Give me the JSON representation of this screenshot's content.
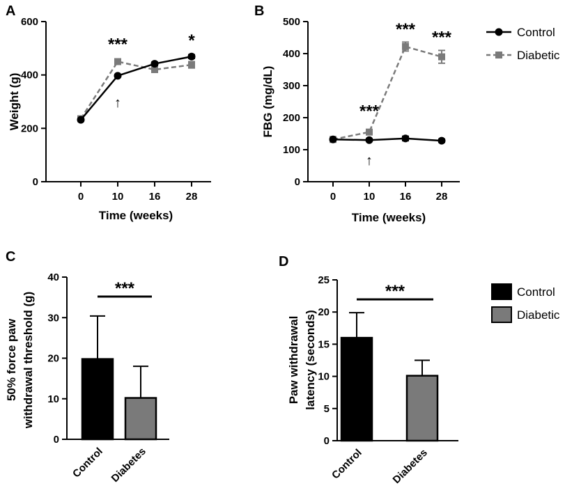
{
  "colors": {
    "control": "#000000",
    "diabetic": "#7a7a7a",
    "axis": "#000000"
  },
  "legend_line": {
    "control": "Control",
    "diabetic": "Diabetic"
  },
  "legend_bar": {
    "control": "Control",
    "diabetic": "Diabetic"
  },
  "chart_data": [
    {
      "panel": "A",
      "type": "line",
      "xlabel": "Time (weeks)",
      "ylabel": "Weight (g)",
      "categories": [
        "0",
        "10",
        "16",
        "28"
      ],
      "ylim": [
        0,
        600
      ],
      "yticks": [
        0,
        200,
        400,
        600
      ],
      "series": [
        {
          "name": "Control",
          "values": [
            232,
            397,
            442,
            469
          ],
          "errors": [
            4,
            4,
            6,
            7
          ]
        },
        {
          "name": "Diabetic",
          "values": [
            236,
            450,
            420,
            438
          ],
          "errors": [
            4,
            5,
            10,
            12
          ]
        }
      ],
      "annotations": [
        {
          "text": "***",
          "category": "10",
          "y": 520
        },
        {
          "text": "*",
          "category": "28",
          "y": 535
        }
      ],
      "arrow": {
        "text": "↑",
        "category": "10",
        "y": 300
      }
    },
    {
      "panel": "B",
      "type": "line",
      "xlabel": "Time (weeks)",
      "ylabel": "FBG (mg/dL)",
      "categories": [
        "0",
        "10",
        "16",
        "28"
      ],
      "ylim": [
        0,
        500
      ],
      "yticks": [
        0,
        100,
        200,
        300,
        400,
        500
      ],
      "series": [
        {
          "name": "Control",
          "values": [
            132,
            130,
            135,
            128
          ],
          "errors": [
            3,
            3,
            7,
            5
          ]
        },
        {
          "name": "Diabetic",
          "values": [
            132,
            155,
            422,
            390
          ],
          "errors": [
            4,
            5,
            14,
            20
          ]
        }
      ],
      "annotations": [
        {
          "text": "***",
          "category": "10",
          "y": 225
        },
        {
          "text": "***",
          "category": "16",
          "y": 480
        },
        {
          "text": "***",
          "category": "28",
          "y": 455
        }
      ],
      "arrow": {
        "text": "↑",
        "category": "10",
        "y": 70
      }
    },
    {
      "panel": "C",
      "type": "bar",
      "ylabel": "50% force paw\nwithdrawal threshold (g)",
      "categories": [
        "Control",
        "Diabetes"
      ],
      "values": [
        19.8,
        10.2
      ],
      "errors": [
        10.6,
        7.8
      ],
      "ylim": [
        0,
        40
      ],
      "yticks": [
        0,
        10,
        20,
        30,
        40
      ],
      "significance": "***"
    },
    {
      "panel": "D",
      "type": "bar",
      "ylabel": "Paw withdrawal\nlatency  (seconds)",
      "categories": [
        "Control",
        "Diabetes"
      ],
      "values": [
        16.0,
        10.1
      ],
      "errors": [
        3.9,
        2.4
      ],
      "ylim": [
        0,
        25
      ],
      "yticks": [
        0,
        5,
        10,
        15,
        20,
        25
      ],
      "significance": "***"
    }
  ]
}
